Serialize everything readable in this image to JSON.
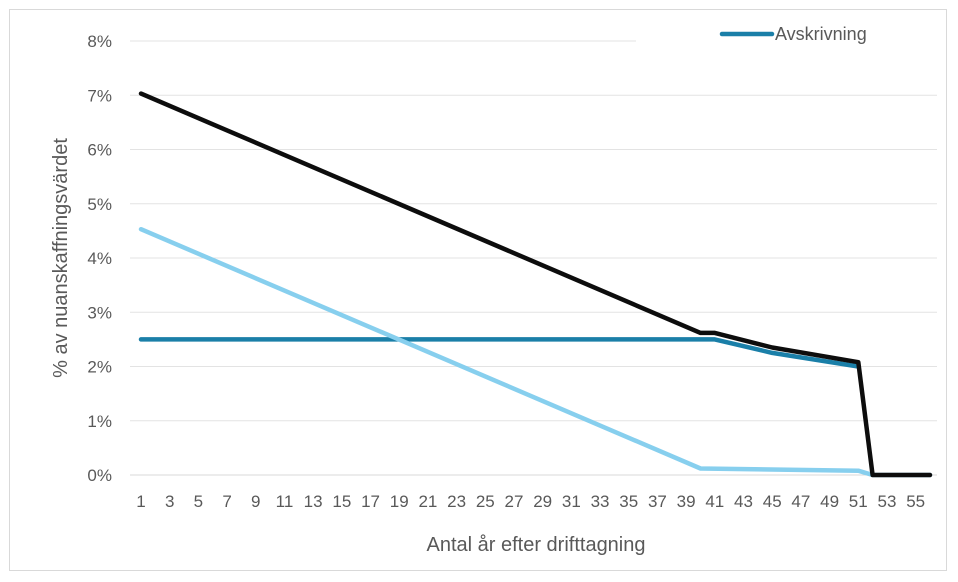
{
  "chart_data": {
    "type": "line",
    "title": "",
    "xlabel": "Antal år efter drifttagning",
    "ylabel": "% av nuanskaffningsvärdet",
    "ylim": [
      0,
      8
    ],
    "y_ticks": [
      "0%",
      "1%",
      "2%",
      "3%",
      "4%",
      "5%",
      "6%",
      "7%",
      "8%"
    ],
    "x_tick_labels": [
      "1",
      "3",
      "5",
      "7",
      "9",
      "11",
      "13",
      "15",
      "17",
      "19",
      "21",
      "23",
      "25",
      "27",
      "29",
      "31",
      "33",
      "35",
      "37",
      "39",
      "41",
      "43",
      "45",
      "47",
      "49",
      "51",
      "53",
      "55"
    ],
    "x_range": [
      1,
      56
    ],
    "grid": "horizontal",
    "legend": {
      "placement": "top-right",
      "entries": [
        "Avskrivning"
      ]
    },
    "series": [
      {
        "name": "Avskrivning",
        "color": "#1a7fa8",
        "x": [
          1,
          40,
          41,
          45,
          51
        ],
        "y": [
          2.5,
          2.5,
          2.5,
          2.25,
          2.0
        ]
      },
      {
        "color": "#87cfee",
        "x": [
          1,
          40,
          51,
          52,
          56
        ],
        "y": [
          4.53,
          0.12,
          0.08,
          0.0,
          0.0
        ]
      },
      {
        "color": "#0d0d0d",
        "x": [
          1,
          40,
          41,
          45,
          51,
          52,
          56
        ],
        "y": [
          7.03,
          2.62,
          2.62,
          2.35,
          2.08,
          0.0,
          0.0
        ]
      }
    ]
  }
}
